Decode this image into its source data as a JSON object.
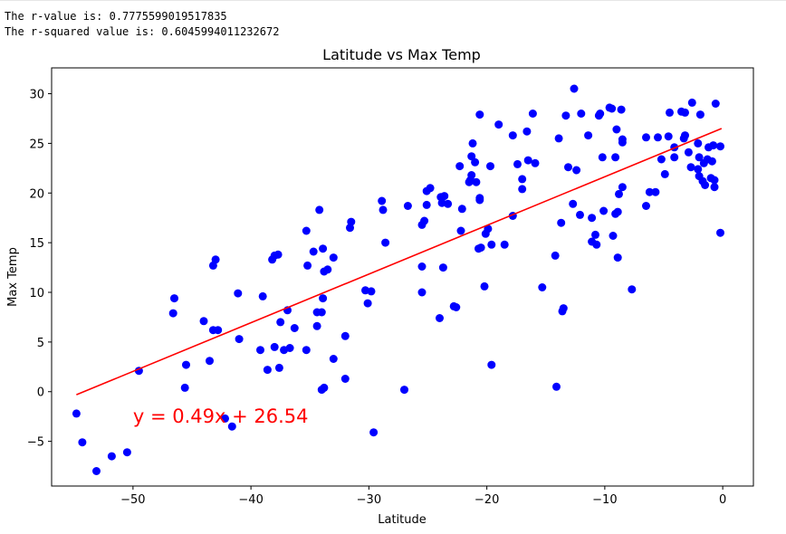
{
  "output": {
    "line1": "The r-value is: 0.7775599019517835",
    "line2": "The r-squared value is: 0.6045994011232672"
  },
  "chart_data": {
    "type": "scatter",
    "title": "Latitude vs Max Temp",
    "xlabel": "Latitude",
    "ylabel": "Max Temp",
    "xlim": [
      -56.9,
      2.6
    ],
    "ylim": [
      -9.5,
      32.6
    ],
    "xticks": [
      -50,
      -40,
      -30,
      -20,
      -10,
      0
    ],
    "yticks": [
      -5,
      0,
      5,
      10,
      15,
      20,
      25,
      30
    ],
    "xtick_labels": [
      "−50",
      "−40",
      "−30",
      "−20",
      "−10",
      "0"
    ],
    "ytick_labels": [
      "−5",
      "0",
      "5",
      "10",
      "15",
      "20",
      "25",
      "30"
    ],
    "grid": false,
    "point_color": "#0000ff",
    "line_color": "#ff0000",
    "regression": {
      "slope": 0.49,
      "intercept": 26.54,
      "x_range": [
        -54.8,
        -0.1
      ],
      "equation": "y = 0.49x + 26.54",
      "equation_position": [
        -50,
        -2.5
      ]
    },
    "points": [
      [
        -54.8,
        -2.2
      ],
      [
        -54.3,
        -5.1
      ],
      [
        -53.1,
        -8.0
      ],
      [
        -51.8,
        -6.5
      ],
      [
        -50.5,
        -6.1
      ],
      [
        -49.5,
        2.1
      ],
      [
        -46.5,
        9.4
      ],
      [
        -46.6,
        7.9
      ],
      [
        -45.5,
        2.7
      ],
      [
        -45.6,
        0.4
      ],
      [
        -44.0,
        7.1
      ],
      [
        -43.5,
        3.1
      ],
      [
        -43.2,
        6.2
      ],
      [
        -42.8,
        6.2
      ],
      [
        -43.2,
        12.7
      ],
      [
        -43.0,
        13.3
      ],
      [
        -42.2,
        -2.7
      ],
      [
        -41.6,
        -3.5
      ],
      [
        -41.1,
        9.9
      ],
      [
        -41.0,
        5.3
      ],
      [
        -39.2,
        4.2
      ],
      [
        -39.0,
        9.6
      ],
      [
        -38.6,
        2.2
      ],
      [
        -38.0,
        4.5
      ],
      [
        -38.2,
        13.3
      ],
      [
        -38.0,
        13.7
      ],
      [
        -37.7,
        13.8
      ],
      [
        -37.6,
        2.4
      ],
      [
        -37.5,
        7.0
      ],
      [
        -37.2,
        4.2
      ],
      [
        -36.9,
        8.2
      ],
      [
        -36.7,
        4.4
      ],
      [
        -36.3,
        6.4
      ],
      [
        -35.3,
        16.2
      ],
      [
        -35.2,
        12.7
      ],
      [
        -35.3,
        4.2
      ],
      [
        -34.7,
        14.1
      ],
      [
        -34.4,
        8.0
      ],
      [
        -34.4,
        6.6
      ],
      [
        -34.2,
        18.3
      ],
      [
        -34.0,
        8.0
      ],
      [
        -34.0,
        0.2
      ],
      [
        -33.8,
        0.4
      ],
      [
        -33.9,
        9.4
      ],
      [
        -33.8,
        12.1
      ],
      [
        -33.9,
        14.4
      ],
      [
        -33.5,
        12.3
      ],
      [
        -33.0,
        3.3
      ],
      [
        -33.0,
        13.5
      ],
      [
        -32.0,
        5.6
      ],
      [
        -32.0,
        1.3
      ],
      [
        -31.6,
        16.5
      ],
      [
        -31.5,
        17.1
      ],
      [
        -30.3,
        10.2
      ],
      [
        -30.1,
        8.9
      ],
      [
        -29.8,
        10.1
      ],
      [
        -29.6,
        -4.1
      ],
      [
        -28.9,
        19.2
      ],
      [
        -28.8,
        18.3
      ],
      [
        -28.6,
        15.0
      ],
      [
        -27.0,
        0.2
      ],
      [
        -26.7,
        18.7
      ],
      [
        -25.5,
        16.8
      ],
      [
        -25.3,
        17.2
      ],
      [
        -25.5,
        10.0
      ],
      [
        -25.5,
        12.6
      ],
      [
        -25.1,
        20.2
      ],
      [
        -25.1,
        18.8
      ],
      [
        -24.8,
        20.5
      ],
      [
        -24.0,
        7.4
      ],
      [
        -23.9,
        19.6
      ],
      [
        -23.8,
        19.0
      ],
      [
        -23.7,
        12.5
      ],
      [
        -23.6,
        19.7
      ],
      [
        -23.3,
        18.9
      ],
      [
        -22.8,
        8.6
      ],
      [
        -22.6,
        8.5
      ],
      [
        -22.3,
        22.7
      ],
      [
        -22.2,
        16.2
      ],
      [
        -22.1,
        18.4
      ],
      [
        -21.5,
        21.1
      ],
      [
        -21.4,
        21.3
      ],
      [
        -21.3,
        23.7
      ],
      [
        -21.3,
        21.8
      ],
      [
        -21.2,
        25.0
      ],
      [
        -20.9,
        21.1
      ],
      [
        -21.0,
        23.1
      ],
      [
        -20.7,
        14.4
      ],
      [
        -20.5,
        14.5
      ],
      [
        -20.6,
        19.5
      ],
      [
        -20.6,
        19.3
      ],
      [
        -20.6,
        27.9
      ],
      [
        -20.2,
        10.6
      ],
      [
        -20.1,
        15.9
      ],
      [
        -19.9,
        16.4
      ],
      [
        -19.7,
        22.7
      ],
      [
        -19.6,
        14.8
      ],
      [
        -19.6,
        2.7
      ],
      [
        -19.0,
        26.9
      ],
      [
        -18.5,
        14.8
      ],
      [
        -17.8,
        17.7
      ],
      [
        -17.8,
        25.8
      ],
      [
        -17.4,
        22.9
      ],
      [
        -17.0,
        21.4
      ],
      [
        -17.0,
        20.4
      ],
      [
        -16.6,
        26.2
      ],
      [
        -16.5,
        23.3
      ],
      [
        -16.1,
        28.0
      ],
      [
        -15.9,
        23.0
      ],
      [
        -15.3,
        10.5
      ],
      [
        -14.2,
        13.7
      ],
      [
        -14.1,
        0.5
      ],
      [
        -13.9,
        25.5
      ],
      [
        -13.7,
        17.0
      ],
      [
        -13.6,
        8.1
      ],
      [
        -13.5,
        8.4
      ],
      [
        -13.3,
        27.8
      ],
      [
        -13.1,
        22.6
      ],
      [
        -12.7,
        18.9
      ],
      [
        -12.6,
        30.5
      ],
      [
        -12.4,
        22.3
      ],
      [
        -12.1,
        17.8
      ],
      [
        -12.0,
        28.0
      ],
      [
        -11.4,
        25.8
      ],
      [
        -11.1,
        15.1
      ],
      [
        -11.1,
        17.5
      ],
      [
        -10.8,
        15.8
      ],
      [
        -10.7,
        14.8
      ],
      [
        -10.5,
        27.8
      ],
      [
        -10.4,
        28.0
      ],
      [
        -10.2,
        23.6
      ],
      [
        -10.1,
        18.2
      ],
      [
        -9.6,
        28.6
      ],
      [
        -9.4,
        28.5
      ],
      [
        -9.3,
        15.7
      ],
      [
        -9.1,
        17.9
      ],
      [
        -9.1,
        23.6
      ],
      [
        -9.0,
        26.4
      ],
      [
        -8.9,
        13.5
      ],
      [
        -8.9,
        18.1
      ],
      [
        -8.8,
        19.9
      ],
      [
        -8.6,
        28.4
      ],
      [
        -8.5,
        25.1
      ],
      [
        -8.5,
        25.4
      ],
      [
        -8.5,
        20.6
      ],
      [
        -7.7,
        10.3
      ],
      [
        -6.5,
        25.6
      ],
      [
        -6.5,
        18.7
      ],
      [
        -6.2,
        20.1
      ],
      [
        -5.7,
        20.1
      ],
      [
        -5.5,
        25.6
      ],
      [
        -5.2,
        23.4
      ],
      [
        -4.9,
        21.9
      ],
      [
        -4.6,
        25.7
      ],
      [
        -4.5,
        28.1
      ],
      [
        -4.1,
        23.6
      ],
      [
        -4.1,
        24.6
      ],
      [
        -3.5,
        28.2
      ],
      [
        -3.3,
        25.5
      ],
      [
        -3.2,
        25.8
      ],
      [
        -3.2,
        28.1
      ],
      [
        -2.9,
        24.1
      ],
      [
        -2.7,
        22.6
      ],
      [
        -2.6,
        29.1
      ],
      [
        -2.1,
        25.0
      ],
      [
        -2.1,
        22.4
      ],
      [
        -2.0,
        23.6
      ],
      [
        -2.0,
        21.7
      ],
      [
        -1.9,
        27.9
      ],
      [
        -1.7,
        21.2
      ],
      [
        -1.6,
        23.0
      ],
      [
        -1.5,
        20.8
      ],
      [
        -1.3,
        23.4
      ],
      [
        -1.2,
        24.6
      ],
      [
        -1.0,
        21.5
      ],
      [
        -0.9,
        23.2
      ],
      [
        -0.8,
        24.8
      ],
      [
        -0.7,
        21.3
      ],
      [
        -0.7,
        20.6
      ],
      [
        -0.6,
        29.0
      ],
      [
        -0.2,
        24.7
      ],
      [
        -0.2,
        16.0
      ]
    ]
  }
}
